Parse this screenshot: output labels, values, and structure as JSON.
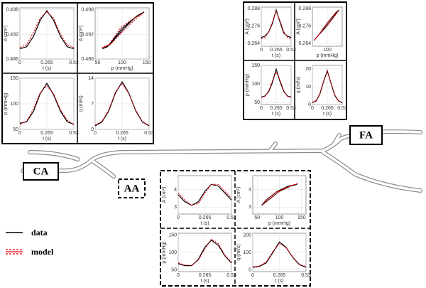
{
  "labels": {
    "ca": "CA",
    "aa": "AA",
    "fa": "FA"
  },
  "legend": {
    "data": "data",
    "model": "model"
  },
  "chart_data": [
    {
      "type": "line",
      "xlabel": "t (s)",
      "ylabel": "A (cm²)",
      "x": [
        0,
        0.066,
        0.133,
        0.2,
        0.265,
        0.33,
        0.4,
        0.465,
        0.53
      ],
      "xlim": [
        0,
        0.53
      ],
      "xticks": [
        0,
        0.265,
        0.53
      ],
      "ylim": [
        0.486,
        0.4985
      ],
      "yticks": [
        0.486,
        0.492,
        0.498
      ],
      "grid": true,
      "series": [
        {
          "name": "data",
          "color": "#000000",
          "values": [
            0.4885,
            0.489,
            0.4915,
            0.4955,
            0.4978,
            0.4955,
            0.4915,
            0.489,
            0.4885
          ]
        },
        {
          "name": "model",
          "color": "#e8000b",
          "dashed": true,
          "values": [
            0.4888,
            0.4895,
            0.4925,
            0.496,
            0.4975,
            0.496,
            0.492,
            0.4895,
            0.4888
          ]
        }
      ]
    },
    {
      "type": "line",
      "xlabel": "p (mmHg)",
      "ylabel": "A (cm²)",
      "xlim": [
        45,
        155
      ],
      "xticks": [
        50,
        100,
        150
      ],
      "ylim": [
        0.486,
        0.4985
      ],
      "yticks": [
        0.486,
        0.492,
        0.498
      ],
      "grid": true,
      "series": [
        {
          "name": "data",
          "color": "#000000",
          "x": [
            60,
            75,
            100,
            125,
            145,
            130,
            100,
            70,
            60
          ],
          "values": [
            0.4885,
            0.4895,
            0.493,
            0.496,
            0.4975,
            0.4965,
            0.4935,
            0.489,
            0.4885
          ]
        },
        {
          "name": "model",
          "color": "#e8000b",
          "dashed": true,
          "x": [
            58,
            78,
            102,
            128,
            143,
            127,
            98,
            72,
            58
          ],
          "values": [
            0.4887,
            0.4898,
            0.4928,
            0.4958,
            0.4972,
            0.4962,
            0.4938,
            0.4893,
            0.4887
          ]
        }
      ]
    },
    {
      "type": "line",
      "xlabel": "t (s)",
      "ylabel": "p (mmHg)",
      "x": [
        0,
        0.066,
        0.133,
        0.2,
        0.265,
        0.33,
        0.4,
        0.465,
        0.53
      ],
      "xlim": [
        0,
        0.53
      ],
      "xticks": [
        0,
        0.265,
        0.53
      ],
      "ylim": [
        50,
        150
      ],
      "yticks": [
        50,
        100,
        150
      ],
      "grid": true,
      "series": [
        {
          "name": "data",
          "color": "#000000",
          "values": [
            62,
            65,
            85,
            120,
            140,
            118,
            85,
            65,
            60
          ]
        },
        {
          "name": "model",
          "color": "#e8000b",
          "dashed": true,
          "values": [
            60,
            66,
            90,
            122,
            135,
            120,
            88,
            68,
            60
          ]
        }
      ]
    },
    {
      "type": "line",
      "xlabel": "t (s)",
      "ylabel": "q (ml/s)",
      "x": [
        0,
        0.066,
        0.133,
        0.2,
        0.265,
        0.33,
        0.4,
        0.465,
        0.53
      ],
      "xlim": [
        0,
        0.53
      ],
      "xticks": [
        0,
        0.265,
        0.53
      ],
      "ylim": [
        0,
        14
      ],
      "yticks": [
        0,
        7,
        14
      ],
      "grid": true,
      "series": [
        {
          "name": "data",
          "color": "#000000",
          "values": [
            1,
            2,
            5,
            10,
            13,
            10,
            5,
            2,
            1
          ]
        },
        {
          "name": "model",
          "color": "#e8000b",
          "dashed": true,
          "values": [
            1.2,
            2.2,
            5.3,
            10.2,
            12.6,
            9.8,
            5.2,
            2.1,
            1.1
          ]
        }
      ]
    },
    {
      "type": "line",
      "xlabel": "t (s)",
      "ylabel": "A (cm²)",
      "x": [
        0,
        0.066,
        0.133,
        0.2,
        0.265,
        0.33,
        0.4,
        0.465,
        0.53
      ],
      "xlim": [
        0,
        0.53
      ],
      "xticks": [
        0,
        0.265,
        0.53
      ],
      "ylim": [
        0.262,
        0.289
      ],
      "yticks": [
        0.264,
        0.276,
        0.288
      ],
      "grid": true,
      "series": [
        {
          "name": "data",
          "color": "#000000",
          "values": [
            0.268,
            0.269,
            0.272,
            0.278,
            0.287,
            0.279,
            0.271,
            0.269,
            0.268
          ]
        },
        {
          "name": "model",
          "color": "#e8000b",
          "dashed": true,
          "values": [
            0.267,
            0.268,
            0.272,
            0.279,
            0.286,
            0.28,
            0.272,
            0.268,
            0.267
          ]
        }
      ]
    },
    {
      "type": "line",
      "xlabel": "p (mmHg)",
      "ylabel": "A (cm²)",
      "xlim": [
        55,
        145
      ],
      "xticks": [
        100
      ],
      "ylim": [
        0.262,
        0.289
      ],
      "yticks": [
        0.264,
        0.276,
        0.288
      ],
      "grid": true,
      "series": [
        {
          "name": "data",
          "color": "#000000",
          "x": [
            60,
            75,
            95,
            115,
            135,
            125,
            100,
            75,
            60
          ],
          "values": [
            0.266,
            0.27,
            0.275,
            0.281,
            0.287,
            0.285,
            0.278,
            0.27,
            0.266
          ]
        },
        {
          "name": "model",
          "color": "#e8000b",
          "dashed": true,
          "x": [
            62,
            78,
            98,
            118,
            133,
            122,
            97,
            73,
            62
          ],
          "values": [
            0.2665,
            0.2708,
            0.2758,
            0.2815,
            0.2862,
            0.2842,
            0.2772,
            0.2695,
            0.2665
          ]
        }
      ]
    },
    {
      "type": "line",
      "xlabel": "t (s)",
      "ylabel": "p (mmHg)",
      "x": [
        0,
        0.066,
        0.133,
        0.2,
        0.265,
        0.33,
        0.4,
        0.465,
        0.53
      ],
      "xlim": [
        0,
        0.53
      ],
      "xticks": [
        0,
        0.265,
        0.53
      ],
      "ylim": [
        45,
        150
      ],
      "yticks": [
        50,
        100,
        150
      ],
      "grid": true,
      "series": [
        {
          "name": "data",
          "color": "#000000",
          "values": [
            65,
            68,
            80,
            105,
            140,
            108,
            80,
            68,
            65
          ]
        },
        {
          "name": "model",
          "color": "#e8000b",
          "dashed": true,
          "values": [
            64,
            67,
            82,
            110,
            132,
            112,
            82,
            67,
            64
          ]
        }
      ]
    },
    {
      "type": "line",
      "xlabel": "t (s)",
      "ylabel": "q (ml/s)",
      "x": [
        0,
        0.066,
        0.133,
        0.2,
        0.265,
        0.33,
        0.4,
        0.465,
        0.53
      ],
      "xlim": [
        0,
        0.53
      ],
      "xticks": [
        0,
        0.265,
        0.53
      ],
      "ylim": [
        0,
        22
      ],
      "yticks": [
        0,
        10,
        20
      ],
      "grid": true,
      "series": [
        {
          "name": "data",
          "color": "#000000",
          "values": [
            1,
            2,
            6,
            13,
            19,
            12,
            5,
            2,
            1
          ]
        },
        {
          "name": "model",
          "color": "#e8000b",
          "dashed": true,
          "values": [
            1.2,
            2.3,
            6.2,
            13.4,
            18.6,
            12.3,
            5.3,
            2.1,
            1.1
          ]
        }
      ]
    },
    {
      "type": "line",
      "xlabel": "t (s)",
      "ylabel": "A (cm²)",
      "x": [
        0,
        0.066,
        0.133,
        0.2,
        0.265,
        0.33,
        0.4,
        0.465,
        0.53
      ],
      "xlim": [
        0,
        0.53
      ],
      "xticks": [
        0,
        0.265,
        0.53
      ],
      "ylim": [
        2.6,
        4.8
      ],
      "yticks": [
        3,
        4
      ],
      "grid": true,
      "series": [
        {
          "name": "data",
          "color": "#000000",
          "values": [
            3.7,
            3.3,
            3.1,
            3.3,
            3.9,
            4.3,
            4.2,
            3.8,
            3.4
          ]
        },
        {
          "name": "model",
          "color": "#e8000b",
          "dashed": true,
          "values": [
            3.8,
            3.4,
            3.1,
            3.2,
            3.8,
            4.3,
            4.3,
            3.9,
            3.5
          ]
        }
      ]
    },
    {
      "type": "line",
      "xlabel": "p (mmHg)",
      "ylabel": "A (cm²)",
      "xlim": [
        40,
        160
      ],
      "xticks": [
        50,
        100,
        150
      ],
      "ylim": [
        2.6,
        4.8
      ],
      "yticks": [
        3,
        4
      ],
      "grid": true,
      "series": [
        {
          "name": "data",
          "color": "#000000",
          "x": [
            60,
            80,
            100,
            125,
            140,
            120,
            95,
            70,
            60
          ],
          "values": [
            3.1,
            3.5,
            3.9,
            4.2,
            4.3,
            4.2,
            3.9,
            3.4,
            3.1
          ]
        },
        {
          "name": "model",
          "color": "#e8000b",
          "dashed": true,
          "x": [
            62,
            82,
            103,
            128,
            142,
            118,
            92,
            68,
            62
          ],
          "values": [
            3.15,
            3.55,
            3.95,
            4.25,
            4.35,
            4.15,
            3.85,
            3.35,
            3.15
          ]
        }
      ]
    },
    {
      "type": "line",
      "xlabel": "t (s)",
      "ylabel": "p (mmHg)",
      "x": [
        0,
        0.066,
        0.133,
        0.2,
        0.265,
        0.33,
        0.4,
        0.465,
        0.53
      ],
      "xlim": [
        0,
        0.53
      ],
      "xticks": [
        0,
        0.265,
        0.53
      ],
      "ylim": [
        45,
        155
      ],
      "yticks": [
        50,
        100,
        150
      ],
      "grid": true,
      "series": [
        {
          "name": "data",
          "color": "#000000",
          "values": [
            68,
            62,
            62,
            80,
            115,
            135,
            120,
            90,
            70
          ]
        },
        {
          "name": "model",
          "color": "#e8000b",
          "dashed": true,
          "values": [
            70,
            64,
            63,
            78,
            110,
            138,
            125,
            92,
            72
          ]
        }
      ]
    },
    {
      "type": "line",
      "xlabel": "t (s)",
      "ylabel": "q (ml/s)",
      "x": [
        0,
        0.066,
        0.133,
        0.2,
        0.265,
        0.33,
        0.4,
        0.465,
        0.53
      ],
      "xlim": [
        0,
        0.53
      ],
      "xticks": [
        0,
        0.265,
        0.53
      ],
      "ylim": [
        -10,
        210
      ],
      "yticks": [
        0,
        100,
        200
      ],
      "grid": true,
      "series": [
        {
          "name": "data",
          "color": "#000000",
          "values": [
            15,
            20,
            40,
            100,
            160,
            130,
            70,
            30,
            15
          ]
        },
        {
          "name": "model",
          "color": "#e8000b",
          "dashed": true,
          "values": [
            18,
            22,
            45,
            105,
            150,
            128,
            72,
            32,
            18
          ]
        }
      ]
    }
  ]
}
